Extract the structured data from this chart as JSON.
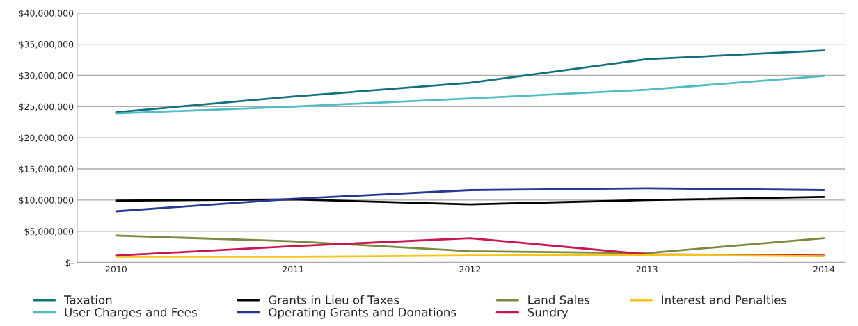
{
  "chart_data": {
    "type": "line",
    "categories": [
      "2010",
      "2011",
      "2012",
      "2013",
      "2014"
    ],
    "series": [
      {
        "name": "Taxation",
        "color": "#13707f",
        "values": [
          24100000,
          26600000,
          28800000,
          32600000,
          34000000
        ]
      },
      {
        "name": "User Charges and Fees",
        "color": "#4fbcc6",
        "values": [
          23900000,
          25000000,
          26300000,
          27700000,
          29900000
        ]
      },
      {
        "name": "Grants in Lieu of Taxes",
        "color": "#000000",
        "values": [
          9900000,
          10100000,
          9300000,
          10000000,
          10500000
        ]
      },
      {
        "name": "Operating Grants and Donations",
        "color": "#243a96",
        "values": [
          8200000,
          10200000,
          11600000,
          11900000,
          11600000
        ]
      },
      {
        "name": "Land Sales",
        "color": "#7b8a3e",
        "values": [
          4300000,
          3400000,
          1800000,
          1500000,
          3900000
        ]
      },
      {
        "name": "Sundry",
        "color": "#c8174f",
        "values": [
          1100000,
          2600000,
          3900000,
          1300000,
          1100000
        ]
      },
      {
        "name": "Interest and Penalties",
        "color": "#f5c518",
        "values": [
          900000,
          900000,
          1100000,
          1200000,
          1000000
        ]
      }
    ],
    "ylim": [
      0,
      40000000
    ],
    "yticks": [
      {
        "value": 0,
        "label": "$-"
      },
      {
        "value": 5000000,
        "label": "$5,000,000"
      },
      {
        "value": 10000000,
        "label": "$10,000,000"
      },
      {
        "value": 15000000,
        "label": "$15,000,000"
      },
      {
        "value": 20000000,
        "label": "$20,000,000"
      },
      {
        "value": 25000000,
        "label": "$25,000,000"
      },
      {
        "value": 30000000,
        "label": "$30,000,000"
      },
      {
        "value": 35000000,
        "label": "$35,000,000"
      },
      {
        "value": 40000000,
        "label": "$40,000,000"
      }
    ],
    "grid": "y",
    "legend": "bottom",
    "marker": "none",
    "line_style": "solid"
  }
}
